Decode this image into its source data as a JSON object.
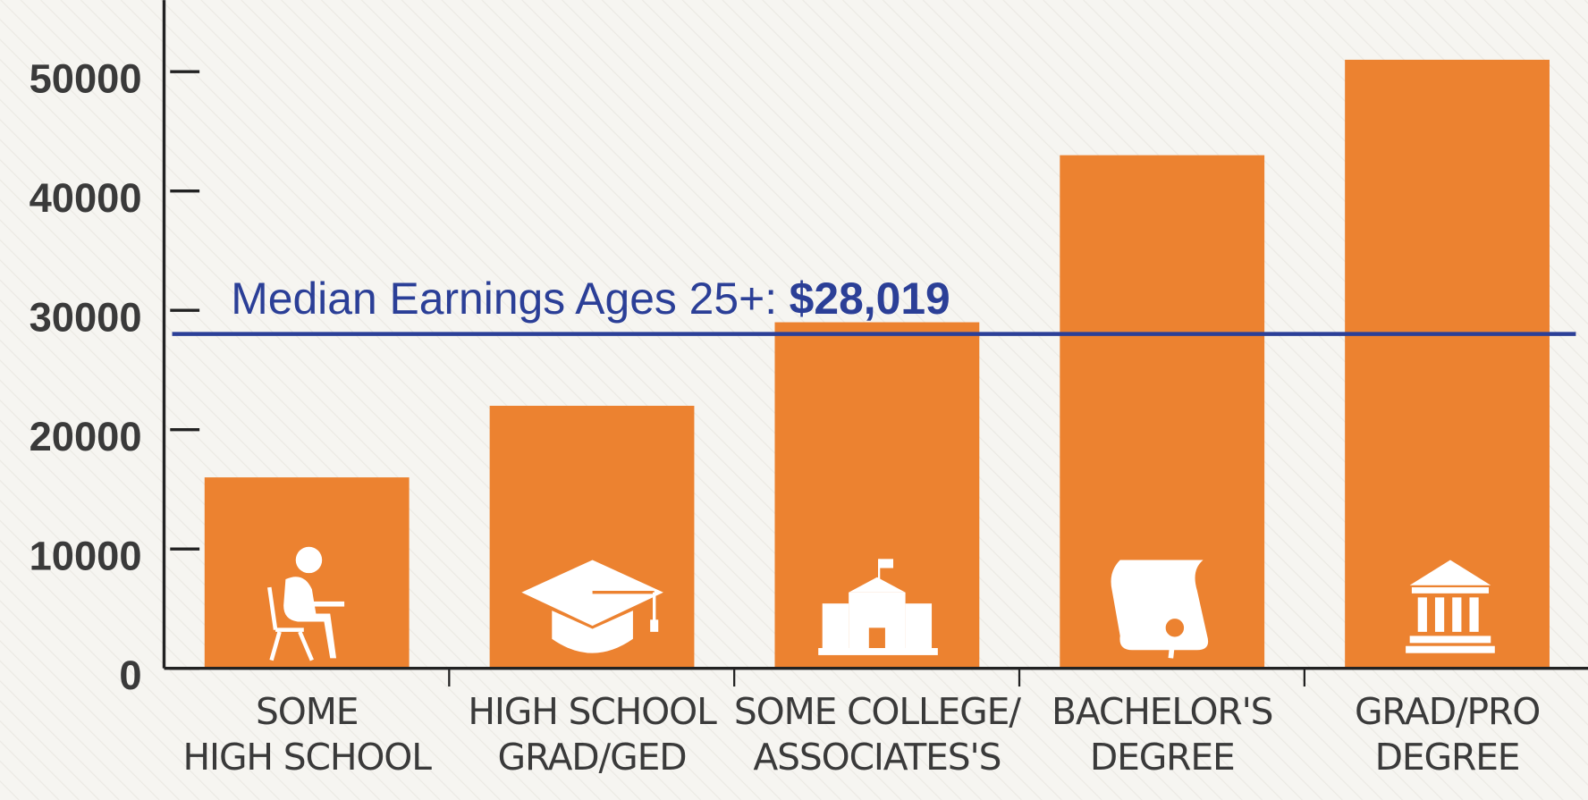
{
  "chart_data": {
    "type": "bar",
    "categories": [
      [
        "SOME",
        "HIGH SCHOOL"
      ],
      [
        "HIGH SCHOOL",
        "GRAD/GED"
      ],
      [
        "SOME COLLEGE/",
        "ASSOCIATES'S"
      ],
      [
        "BACHELOR'S",
        "DEGREE"
      ],
      [
        "GRAD/PRO",
        "DEGREE"
      ]
    ],
    "values": [
      16000,
      22000,
      29000,
      43000,
      51000
    ],
    "color": "#ec8230",
    "ylim": [
      0,
      56000
    ],
    "yticks": [
      0,
      10000,
      20000,
      30000,
      40000,
      50000
    ],
    "reference_line": {
      "label": "Median Earnings Ages 25+:",
      "value": 28019,
      "value_label": "$28,019",
      "color": "#2b3f97"
    }
  }
}
